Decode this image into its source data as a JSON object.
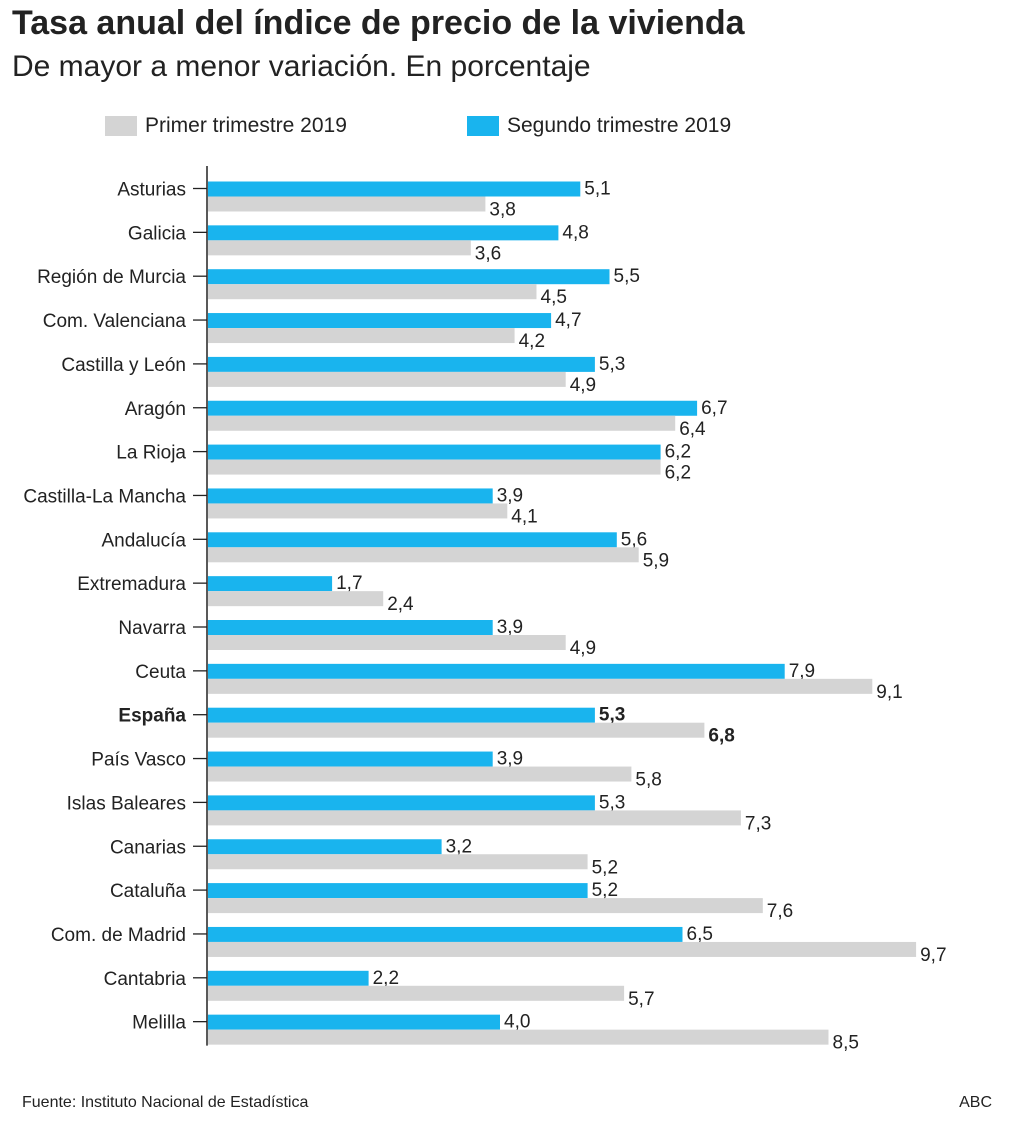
{
  "title": "Tasa anual del índice de precio de la vivienda",
  "subtitle": "De mayor a menor variación. En porcentaje",
  "source": "Fuente: Instituto Nacional de Estadística",
  "credit": "ABC",
  "colors": {
    "q1": "#d4d4d4",
    "q2": "#19b4ee",
    "text": "#222222",
    "axis": "#222222"
  },
  "chart_data": {
    "type": "bar",
    "orientation": "horizontal",
    "title": "Tasa anual del índice de precio de la vivienda",
    "subtitle": "De mayor a menor variación. En porcentaje",
    "xlim": [
      0,
      10
    ],
    "legend_position": "top",
    "highlight_category": "España",
    "categories": [
      "Asturias",
      "Galicia",
      "Región de Murcia",
      "Com. Valenciana",
      "Castilla y León",
      "Aragón",
      "La Rioja",
      "Castilla-La Mancha",
      "Andalucía",
      "Extremadura",
      "Navarra",
      "Ceuta",
      "España",
      "País Vasco",
      "Islas Baleares",
      "Canarias",
      "Cataluña",
      "Com. de Madrid",
      "Cantabria",
      "Melilla"
    ],
    "series": [
      {
        "name": "Segundo trimestre 2019",
        "values": [
          5.1,
          4.8,
          5.5,
          4.7,
          5.3,
          6.7,
          6.2,
          3.9,
          5.6,
          1.7,
          3.9,
          7.9,
          5.3,
          3.9,
          5.3,
          3.2,
          5.2,
          6.5,
          2.2,
          4.0
        ],
        "labels": [
          "5,1",
          "4,8",
          "5,5",
          "4,7",
          "5,3",
          "6,7",
          "6,2",
          "3,9",
          "5,6",
          "1,7",
          "3,9",
          "7,9",
          "5,3",
          "3,9",
          "5,3",
          "3,2",
          "5,2",
          "6,5",
          "2,2",
          "4,0"
        ]
      },
      {
        "name": "Primer trimestre 2019",
        "values": [
          3.8,
          3.6,
          4.5,
          4.2,
          4.9,
          6.4,
          6.2,
          4.1,
          5.9,
          2.4,
          4.9,
          9.1,
          6.8,
          5.8,
          7.3,
          5.2,
          7.6,
          9.7,
          5.7,
          8.5
        ],
        "labels": [
          "3,8",
          "3,6",
          "4,5",
          "4,2",
          "4,9",
          "6,4",
          "6,2",
          "4,1",
          "5,9",
          "2,4",
          "4,9",
          "9,1",
          "6,8",
          "5,8",
          "7,3",
          "5,2",
          "7,6",
          "9,7",
          "5,7",
          "8,5"
        ]
      }
    ]
  }
}
